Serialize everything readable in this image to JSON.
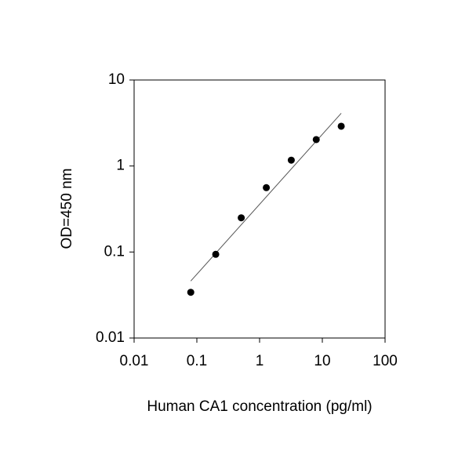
{
  "chart_data": {
    "type": "scatter",
    "x_label": "Human CA1 concentration (pg/ml)",
    "y_label": "OD=450 nm",
    "x": [
      0.08,
      0.2,
      0.51,
      1.28,
      3.2,
      8,
      20
    ],
    "values": [
      0.034,
      0.094,
      0.25,
      0.56,
      1.17,
      2.03,
      2.9
    ],
    "color": "#000000",
    "fit": {
      "x": [
        0.08,
        20
      ],
      "values": [
        0.046,
        4.1
      ],
      "color": "#555555"
    },
    "log_x": true,
    "log_y": true,
    "xlim": [
      0.01,
      100
    ],
    "xticks": [
      0.01,
      0.1,
      1,
      10,
      100
    ],
    "ylim": [
      0.01,
      10
    ],
    "yticks": [
      0.01,
      0.1,
      1,
      10
    ]
  }
}
